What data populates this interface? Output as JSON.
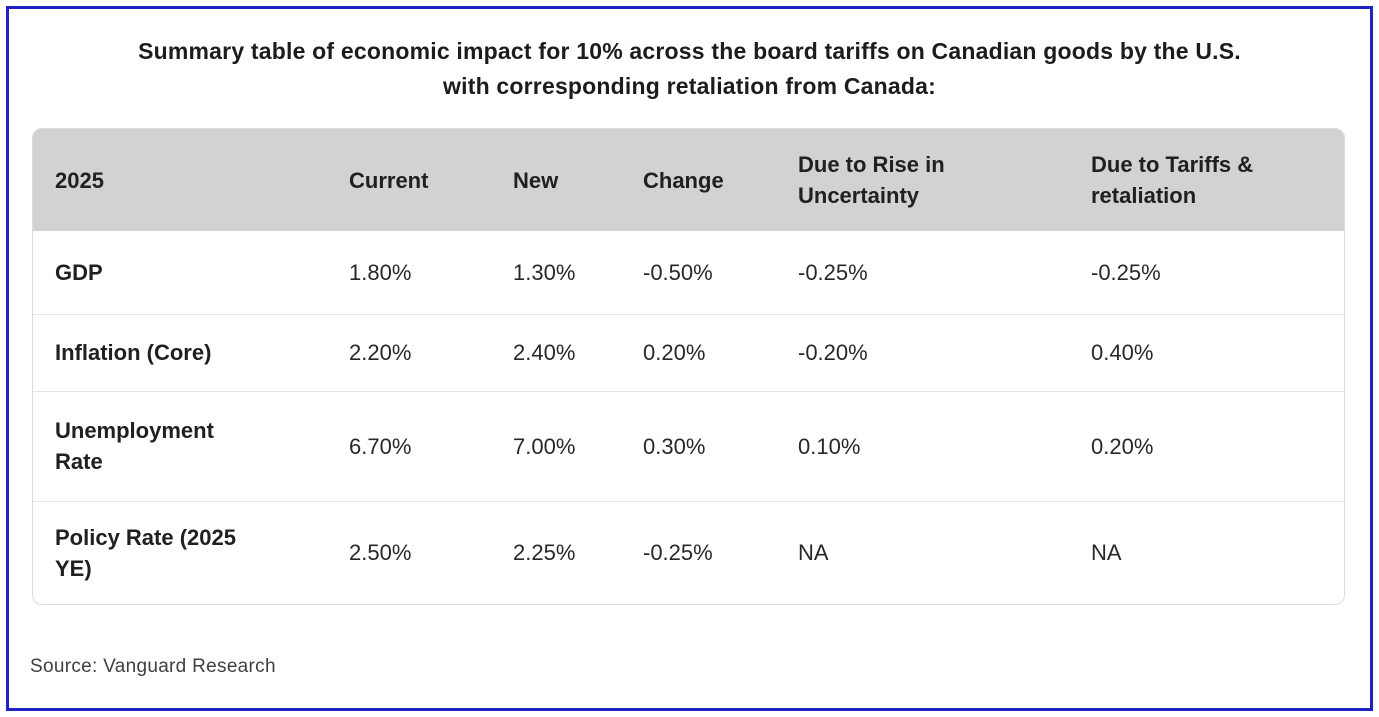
{
  "colors": {
    "frame_border": "#2122c6",
    "header_background": "#d2d2d0",
    "separator": "#e4e4e4",
    "body_border": "#dcdcdc",
    "text": "#1c1c1e"
  },
  "title": {
    "text": "Summary table of economic impact for 10% across the board tariffs on Canadian goods by the U.S.\nwith corresponding retaliation from Canada:"
  },
  "table": {
    "headers": [
      "2025",
      "Current",
      "New",
      "Change",
      "Due to Rise in\nUncertainty",
      "Due to Tariffs &\nretaliation"
    ],
    "rows": [
      {
        "label": "GDP",
        "values": [
          "1.80%",
          "1.30%",
          "-0.50%",
          "-0.25%",
          "-0.25%"
        ]
      },
      {
        "label": "Inflation (Core)",
        "values": [
          "2.20%",
          "2.40%",
          "0.20%",
          "-0.20%",
          "0.40%"
        ]
      },
      {
        "label": "Unemployment\nRate",
        "values": [
          "6.70%",
          "7.00%",
          "0.30%",
          "0.10%",
          "0.20%"
        ]
      },
      {
        "label": "Policy Rate (2025\nYE)",
        "values": [
          "2.50%",
          "2.25%",
          "-0.25%",
          "NA",
          "NA"
        ]
      }
    ]
  },
  "source": "Source: Vanguard Research",
  "chart_data": {
    "type": "table",
    "title": "Summary table of economic impact for 10% across the board tariffs on Canadian goods by the U.S. with corresponding retaliation from Canada:",
    "columns": [
      "2025",
      "Current",
      "New",
      "Change",
      "Due to Rise in Uncertainty",
      "Due to Tariffs & retaliation"
    ],
    "rows": [
      [
        "GDP",
        "1.80%",
        "1.30%",
        "-0.50%",
        "-0.25%",
        "-0.25%"
      ],
      [
        "Inflation (Core)",
        "2.20%",
        "2.40%",
        "0.20%",
        "-0.20%",
        "0.40%"
      ],
      [
        "Unemployment Rate",
        "6.70%",
        "7.00%",
        "0.30%",
        "0.10%",
        "0.20%"
      ],
      [
        "Policy Rate (2025 YE)",
        "2.50%",
        "2.25%",
        "-0.25%",
        "NA",
        "NA"
      ]
    ],
    "source": "Source: Vanguard Research"
  }
}
